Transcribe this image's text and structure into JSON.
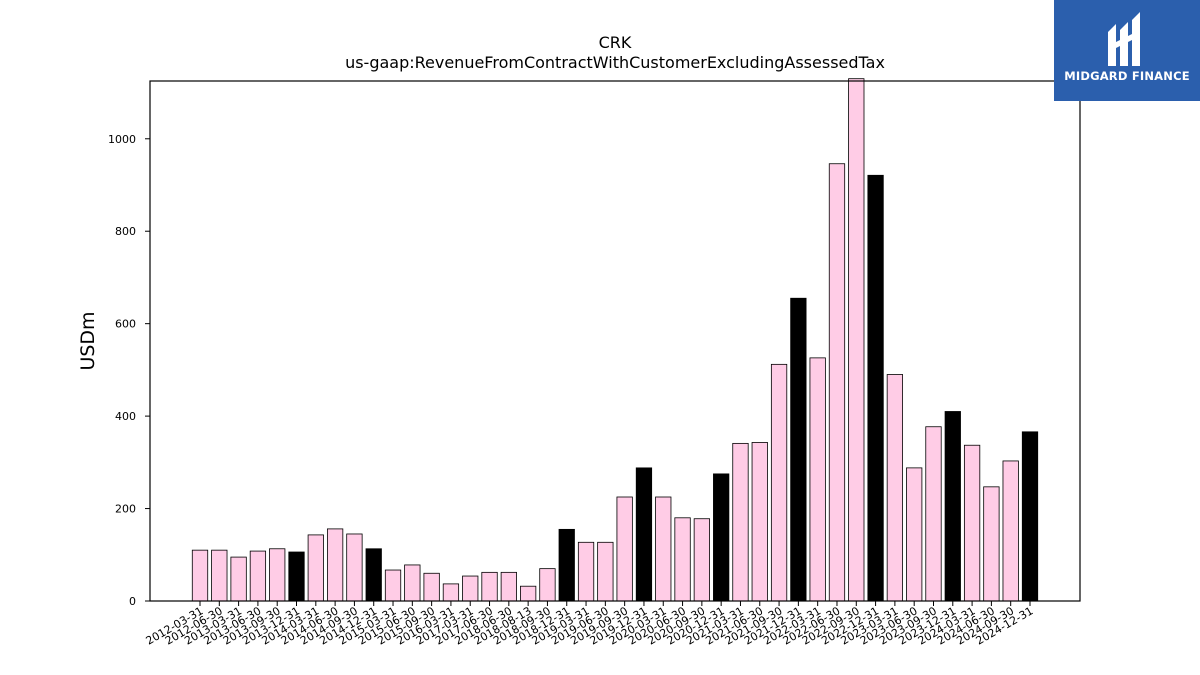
{
  "chart_data": {
    "type": "bar",
    "title": "CRK",
    "subtitle": "us-gaap:RevenueFromContractWithCustomerExcludingAssessedTax",
    "xlabel": "",
    "ylabel": "USDm",
    "ylim": [
      0,
      1125
    ],
    "yticks": [
      0,
      200,
      400,
      600,
      800,
      1000
    ],
    "grid": false,
    "colors": {
      "quarter": "#ffcce6",
      "year_end": "#000000",
      "edge": "#000000"
    },
    "categories": [
      "2012-03-31",
      "2012-06-30",
      "2013-03-31",
      "2013-06-30",
      "2013-09-30",
      "2013-12-31",
      "2014-03-31",
      "2014-06-30",
      "2014-09-30",
      "2014-12-31",
      "2015-03-31",
      "2015-06-30",
      "2015-09-30",
      "2016-03-31",
      "2017-03-31",
      "2017-06-30",
      "2018-06-30",
      "2018-08-13",
      "2018-09-30",
      "2018-12-31",
      "2019-03-31",
      "2019-06-30",
      "2019-09-30",
      "2019-12-31",
      "2020-03-31",
      "2020-06-30",
      "2020-09-30",
      "2020-12-31",
      "2021-03-31",
      "2021-06-30",
      "2021-09-30",
      "2021-12-31",
      "2022-03-31",
      "2022-06-30",
      "2022-09-30",
      "2022-12-31",
      "2023-03-31",
      "2023-06-30",
      "2023-09-30",
      "2023-12-31",
      "2024-03-31",
      "2024-06-30",
      "2024-09-30",
      "2024-12-31"
    ],
    "values": [
      110,
      110,
      95,
      108,
      113,
      106,
      143,
      156,
      145,
      113,
      67,
      78,
      60,
      37,
      54,
      62,
      62,
      32,
      70,
      155,
      127,
      127,
      225,
      288,
      225,
      180,
      178,
      275,
      341,
      343,
      512,
      655,
      526,
      946,
      1130,
      921,
      490,
      288,
      377,
      410,
      337,
      247,
      303,
      366
    ],
    "year_end_flags": [
      false,
      false,
      false,
      false,
      false,
      true,
      false,
      false,
      false,
      true,
      false,
      false,
      false,
      false,
      false,
      false,
      false,
      false,
      false,
      true,
      false,
      false,
      false,
      true,
      false,
      false,
      false,
      true,
      false,
      false,
      false,
      true,
      false,
      false,
      false,
      true,
      false,
      false,
      false,
      true,
      false,
      false,
      false,
      true
    ]
  },
  "logo": {
    "text": "MIDGARD FINANCE"
  }
}
